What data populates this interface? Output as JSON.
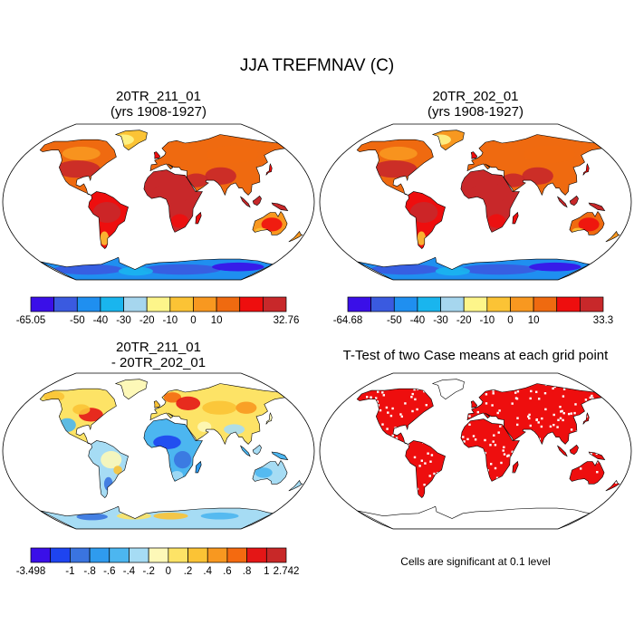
{
  "title": "JJA TREFMNAV (C)",
  "panels": [
    {
      "id": "p1",
      "title_line1": "20TR_211_01",
      "title_line2": "(yrs 1908-1927)",
      "kind": "field"
    },
    {
      "id": "p2",
      "title_line1": "20TR_202_01",
      "title_line2": "(yrs 1908-1927)",
      "kind": "field"
    },
    {
      "id": "p3",
      "title_line1": "20TR_211_01",
      "title_line2": "- 20TR_202_01",
      "kind": "diff"
    },
    {
      "id": "p4",
      "title_line1": "T-Test of two Case means at each grid point",
      "title_line2": "",
      "kind": "ttest"
    }
  ],
  "note": "Cells are significant at 0.1 level",
  "chart_data": [
    {
      "type": "heatmap",
      "projection": "robinson",
      "title": "20TR_211_01 (yrs 1908-1927)",
      "min": -65.05,
      "max": 32.76,
      "levels": [
        -50,
        -40,
        -30,
        -20,
        -10,
        0,
        10
      ],
      "colorbar_labels": [
        "-65.05",
        "-50",
        "-40",
        "-30",
        "-20",
        "-10",
        "0",
        "10",
        "32.76"
      ],
      "colors": [
        "#3a0fe8",
        "#3a5ae0",
        "#1f8ff0",
        "#19b5ee",
        "#a6d6ee",
        "#fdf58a",
        "#fbc335",
        "#f89820",
        "#ef6a10",
        "#ee0e0e",
        "#c8282a"
      ]
    },
    {
      "type": "heatmap",
      "projection": "robinson",
      "title": "20TR_202_01 (yrs 1908-1927)",
      "min": -64.68,
      "max": 33.3,
      "levels": [
        -50,
        -40,
        -30,
        -20,
        -10,
        0,
        10
      ],
      "colorbar_labels": [
        "-64.68",
        "-50",
        "-40",
        "-30",
        "-20",
        "-10",
        "0",
        "10",
        "33.3"
      ],
      "colors": [
        "#3a0fe8",
        "#3a5ae0",
        "#1f8ff0",
        "#19b5ee",
        "#a6d6ee",
        "#fdf58a",
        "#fbc335",
        "#f89820",
        "#ef6a10",
        "#ee0e0e",
        "#c8282a"
      ]
    },
    {
      "type": "heatmap",
      "projection": "robinson",
      "title": "20TR_211_01 - 20TR_202_01",
      "min": -3.498,
      "max": 2.742,
      "levels": [
        -1,
        -0.8,
        -0.6,
        -0.4,
        -0.2,
        0,
        0.2,
        0.4,
        0.6,
        0.8,
        1
      ],
      "colorbar_labels": [
        "-3.498",
        "-1",
        "-.8",
        "-.6",
        "-.4",
        "-.2",
        "0",
        ".2",
        ".4",
        ".6",
        ".8",
        "1",
        "2.742"
      ],
      "colors": [
        "#3a0fe8",
        "#1e44f0",
        "#3a74e0",
        "#2f9bee",
        "#4cb6f0",
        "#a6dcf4",
        "#fdf8b8",
        "#fde366",
        "#fbc335",
        "#f89820",
        "#f46a10",
        "#e41616",
        "#c82828"
      ]
    },
    {
      "type": "heatmap",
      "projection": "robinson",
      "title": "T-Test of two Case means at each grid point",
      "significance_level": 0.1,
      "colors": [
        "#ee0e0e"
      ]
    }
  ]
}
